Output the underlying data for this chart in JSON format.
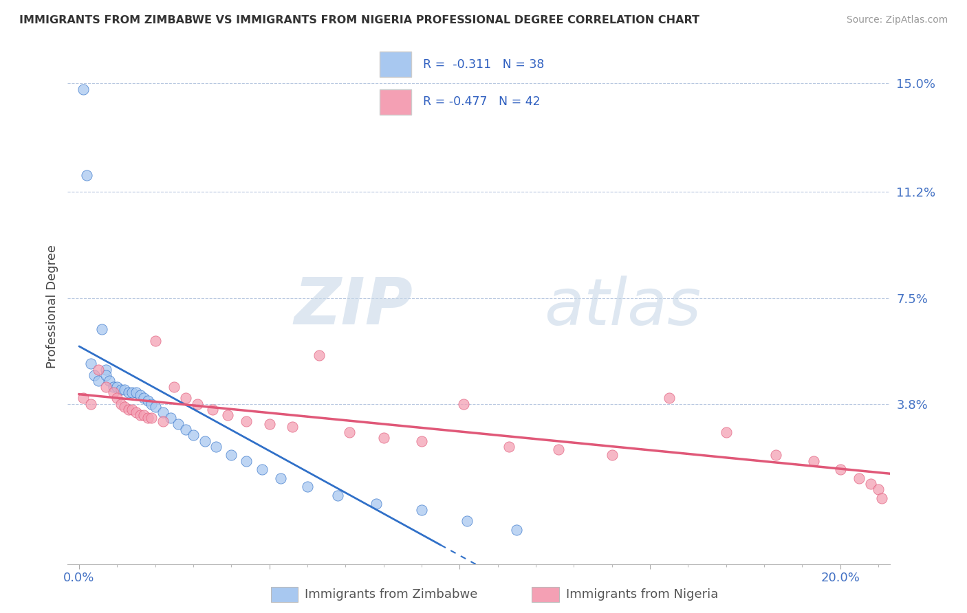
{
  "title": "IMMIGRANTS FROM ZIMBABWE VS IMMIGRANTS FROM NIGERIA PROFESSIONAL DEGREE CORRELATION CHART",
  "source": "Source: ZipAtlas.com",
  "ylabel": "Professional Degree",
  "y_tick_labels": [
    "3.8%",
    "7.5%",
    "11.2%",
    "15.0%"
  ],
  "y_ticks": [
    0.038,
    0.075,
    0.112,
    0.15
  ],
  "xlim": [
    -0.003,
    0.213
  ],
  "ylim": [
    -0.018,
    0.162
  ],
  "legend_r1": "R =  -0.311   N = 38",
  "legend_r2": "R = -0.477   N = 42",
  "color_zimbabwe": "#a8c8f0",
  "color_nigeria": "#f4a0b4",
  "color_line_zimbabwe": "#3070c8",
  "color_line_nigeria": "#e05878",
  "watermark_zip": "ZIP",
  "watermark_atlas": "atlas",
  "legend_color_text": "#3060c0",
  "footer_label1": "Immigrants from Zimbabwe",
  "footer_label2": "Immigrants from Nigeria",
  "zimbabwe_x": [
    0.001,
    0.002,
    0.003,
    0.004,
    0.005,
    0.006,
    0.007,
    0.007,
    0.008,
    0.009,
    0.01,
    0.011,
    0.012,
    0.013,
    0.014,
    0.015,
    0.016,
    0.017,
    0.018,
    0.019,
    0.02,
    0.022,
    0.024,
    0.026,
    0.028,
    0.03,
    0.033,
    0.036,
    0.04,
    0.044,
    0.048,
    0.053,
    0.06,
    0.068,
    0.078,
    0.09,
    0.102,
    0.115
  ],
  "zimbabwe_y": [
    0.148,
    0.118,
    0.052,
    0.048,
    0.046,
    0.064,
    0.05,
    0.048,
    0.046,
    0.044,
    0.044,
    0.043,
    0.043,
    0.042,
    0.042,
    0.042,
    0.041,
    0.04,
    0.039,
    0.038,
    0.037,
    0.035,
    0.033,
    0.031,
    0.029,
    0.027,
    0.025,
    0.023,
    0.02,
    0.018,
    0.015,
    0.012,
    0.009,
    0.006,
    0.003,
    0.001,
    -0.003,
    -0.006
  ],
  "nigeria_x": [
    0.001,
    0.003,
    0.005,
    0.007,
    0.009,
    0.01,
    0.011,
    0.012,
    0.013,
    0.014,
    0.015,
    0.016,
    0.017,
    0.018,
    0.019,
    0.02,
    0.022,
    0.025,
    0.028,
    0.031,
    0.035,
    0.039,
    0.044,
    0.05,
    0.056,
    0.063,
    0.071,
    0.08,
    0.09,
    0.101,
    0.113,
    0.126,
    0.14,
    0.155,
    0.17,
    0.183,
    0.193,
    0.2,
    0.205,
    0.208,
    0.21,
    0.211
  ],
  "nigeria_y": [
    0.04,
    0.038,
    0.05,
    0.044,
    0.042,
    0.04,
    0.038,
    0.037,
    0.036,
    0.036,
    0.035,
    0.034,
    0.034,
    0.033,
    0.033,
    0.06,
    0.032,
    0.044,
    0.04,
    0.038,
    0.036,
    0.034,
    0.032,
    0.031,
    0.03,
    0.055,
    0.028,
    0.026,
    0.025,
    0.038,
    0.023,
    0.022,
    0.02,
    0.04,
    0.028,
    0.02,
    0.018,
    0.015,
    0.012,
    0.01,
    0.008,
    0.005
  ]
}
